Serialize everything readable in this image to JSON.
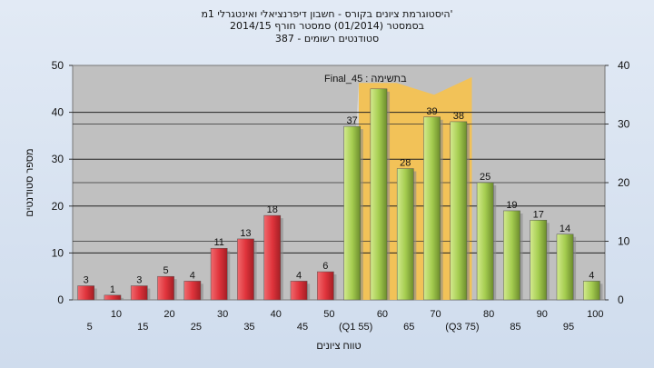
{
  "chart_data": {
    "type": "bar",
    "title_lines": [
      "היסטוגרמת ציונים בקורס - חשבון דיפרנציאלי ואינטגרלי 1מ'",
      "בסמסטר  (01/2014)  סמסטר חורף 2014/15",
      "387 - סטודנטים רשומים"
    ],
    "xlabel": "טווח ציונים",
    "ylabel": "מספר סטודנטים",
    "ylim_left": [
      0,
      50
    ],
    "ylim_right": [
      0,
      40
    ],
    "yticks_left": [
      0,
      10,
      20,
      30,
      40,
      50
    ],
    "yticks_right": [
      0,
      10,
      20,
      30,
      40
    ],
    "annotation": "בתשימה : Final_45",
    "categories": [
      "5",
      "10",
      "15",
      "20",
      "25",
      "30",
      "35",
      "40",
      "45",
      "50",
      "(Q1 55)",
      "60",
      "65",
      "70",
      "(Q3 75)",
      "80",
      "85",
      "90",
      "95",
      "100"
    ],
    "values": [
      3,
      1,
      3,
      5,
      4,
      11,
      13,
      18,
      4,
      6,
      37,
      45,
      28,
      39,
      38,
      25,
      19,
      17,
      14,
      4
    ],
    "value_labels": [
      "3",
      "1",
      "3",
      "5",
      "4",
      "11",
      "13",
      "18",
      "4",
      "6",
      "37",
      "",
      "28",
      "39",
      "38",
      "25",
      "19",
      "17",
      "14",
      "4"
    ],
    "bar_colors": [
      "red",
      "red",
      "red",
      "red",
      "red",
      "red",
      "red",
      "red",
      "red",
      "red",
      "green",
      "green",
      "green",
      "green",
      "green",
      "green",
      "green",
      "green",
      "green",
      "green"
    ],
    "highlight_area": {
      "x_from": 11,
      "x_to": 15,
      "values": [
        37,
        37,
        35,
        38
      ],
      "color": "#f7c24d"
    },
    "grid": "horizontal",
    "colors": {
      "red": "#e0343c",
      "green": "#a5cd50",
      "plot_bg": "#c0c0c0",
      "highlight": "#f7c24d"
    }
  }
}
